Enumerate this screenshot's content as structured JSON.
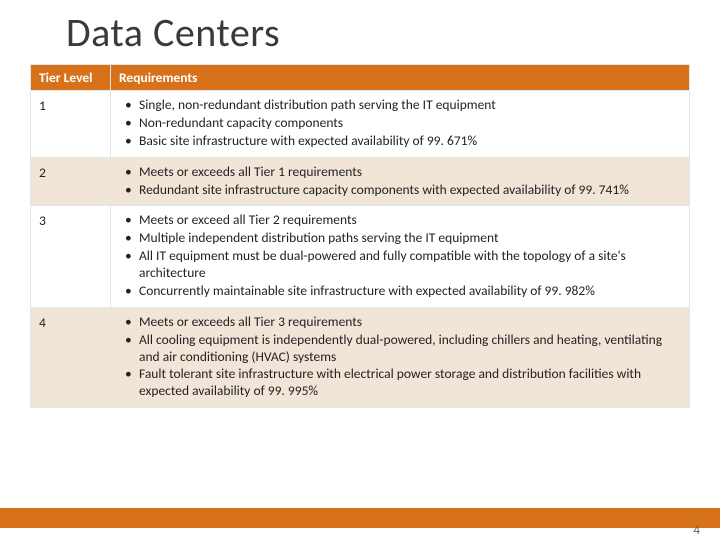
{
  "title": "Data Centers",
  "page_number": "4",
  "colors": {
    "accent": "#d8721a",
    "alt_row": "#f1e5d7",
    "border": "#e6e6e6",
    "text": "#222222",
    "title_text": "#3a3a3a",
    "pagenum": "#6b5a46"
  },
  "table": {
    "columns": [
      "Tier Level",
      "Requirements"
    ],
    "rows": [
      {
        "tier": "1",
        "requirements": [
          "Single, non-redundant distribution path serving the IT equipment",
          "Non-redundant capacity components",
          "Basic site infrastructure with expected availability of 99. 671%"
        ]
      },
      {
        "tier": "2",
        "requirements": [
          "Meets or exceeds all Tier 1 requirements",
          "Redundant site infrastructure capacity components with expected availability of 99. 741%"
        ]
      },
      {
        "tier": "3",
        "requirements": [
          "Meets or exceed all Tier 2 requirements",
          "Multiple independent distribution paths serving the IT equipment",
          "All IT equipment must be dual-powered and fully compatible with the topology of a site's architecture",
          "Concurrently maintainable site infrastructure with expected availability of 99. 982%"
        ]
      },
      {
        "tier": "4",
        "requirements": [
          "Meets or exceeds all Tier 3 requirements",
          "All cooling equipment is independently dual-powered, including chillers and heating, ventilating and air conditioning (HVAC) systems",
          "Fault tolerant site infrastructure with electrical power storage and distribution facilities with expected availability of 99. 995%"
        ]
      }
    ]
  }
}
